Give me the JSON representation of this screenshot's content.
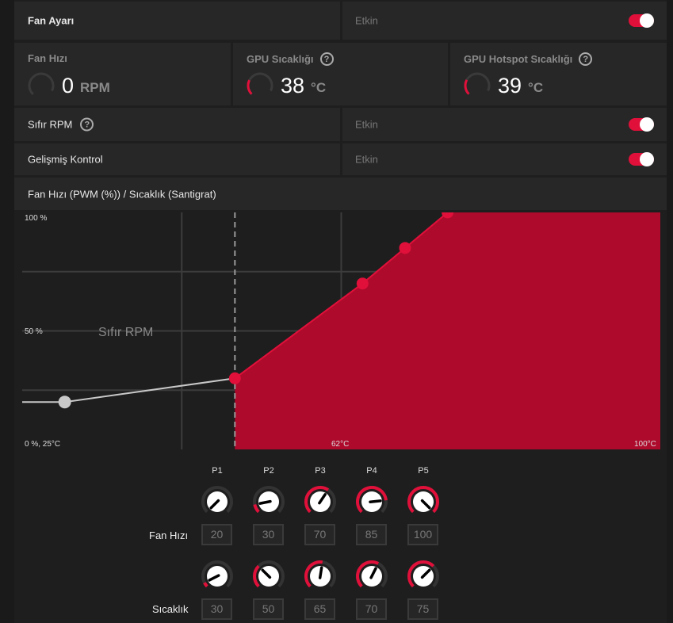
{
  "fan_setting": {
    "label": "Fan Ayarı",
    "status": "Etkin",
    "enabled": true
  },
  "stats": [
    {
      "title": "Fan Hızı",
      "value": "0",
      "unit": "RPM",
      "help": false,
      "gauge": 0
    },
    {
      "title": "GPU Sıcaklığı",
      "value": "38",
      "unit": "°C",
      "help": true,
      "gauge": 0.38
    },
    {
      "title": "GPU Hotspot Sıcaklığı",
      "value": "39",
      "unit": "°C",
      "help": true,
      "gauge": 0.39
    }
  ],
  "zero_rpm": {
    "label": "Sıfır RPM",
    "status": "Etkin",
    "enabled": true
  },
  "advanced": {
    "label": "Gelişmiş Kontrol",
    "status": "Etkin",
    "enabled": true
  },
  "curve_title": "Fan Hızı (PWM (%)) / Sıcaklık (Santigrat)",
  "chart_data": {
    "type": "line",
    "title": "Fan Hızı (PWM (%)) / Sıcaklık (Santigrat)",
    "xlim": [
      25,
      100
    ],
    "ylim": [
      0,
      100
    ],
    "x_tick_labels": {
      "origin": "0 %, 25°C",
      "mid": "62°C",
      "max": "100°C"
    },
    "y_tick_labels": {
      "top": "100 %",
      "mid": "50 %"
    },
    "zero_rpm_label": "Sıfır RPM",
    "zero_rpm_threshold": 50,
    "points": [
      {
        "x": 30,
        "y": 20
      },
      {
        "x": 50,
        "y": 30
      },
      {
        "x": 65,
        "y": 70
      },
      {
        "x": 70,
        "y": 85
      },
      {
        "x": 75,
        "y": 100
      }
    ],
    "colors": {
      "fill": "#ad0a2c",
      "point": "#e0103a",
      "inactive": "#c8c8c8"
    }
  },
  "points_editor": {
    "headers": [
      "P1",
      "P2",
      "P3",
      "P4",
      "P5"
    ],
    "fan_label": "Fan Hızı",
    "temp_label": "Sıcaklık",
    "fan_values": [
      "20",
      "30",
      "70",
      "85",
      "100"
    ],
    "temp_values": [
      "30",
      "50",
      "65",
      "70",
      "75"
    ],
    "fan_range": [
      20,
      100
    ],
    "temp_range": [
      25,
      100
    ]
  }
}
